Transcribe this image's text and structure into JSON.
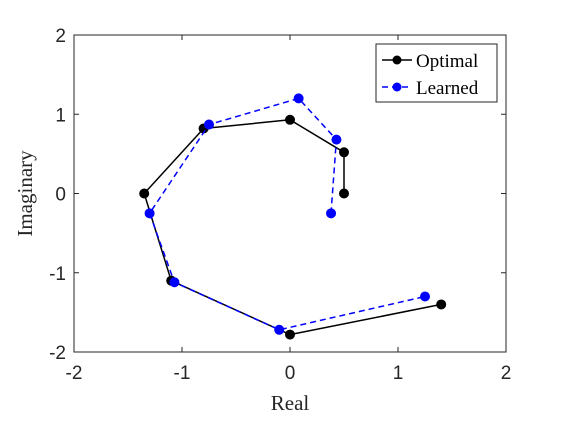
{
  "chart_data": {
    "type": "line",
    "title": "",
    "xlabel": "Real",
    "ylabel": "Imaginary",
    "xlim": [
      -2,
      2
    ],
    "ylim": [
      -2,
      2
    ],
    "xticks": [
      -2,
      -1,
      0,
      1,
      2
    ],
    "yticks": [
      -2,
      -1,
      0,
      1,
      2
    ],
    "xtick_labels": [
      "-2",
      "-1",
      "0",
      "1",
      "2"
    ],
    "ytick_labels": [
      "-2",
      "-1",
      "0",
      "1",
      "2"
    ],
    "grid": false,
    "legend_position": "top-right",
    "series": [
      {
        "name": "Optimal",
        "color": "#000000",
        "line_style": "solid",
        "marker": "circle",
        "x": [
          0.5,
          0.5,
          0.0,
          -0.8,
          -1.35,
          -1.1,
          0.0,
          1.4
        ],
        "y": [
          0.0,
          0.52,
          0.93,
          0.82,
          0.0,
          -1.1,
          -1.78,
          -1.4
        ]
      },
      {
        "name": "Learned",
        "color": "#0000ff",
        "line_style": "dashed",
        "marker": "circle",
        "x": [
          0.38,
          0.43,
          0.08,
          -0.75,
          -1.3,
          -1.07,
          -0.1,
          1.25
        ],
        "y": [
          -0.25,
          0.68,
          1.2,
          0.87,
          -0.25,
          -1.12,
          -1.72,
          -1.3
        ]
      }
    ]
  }
}
